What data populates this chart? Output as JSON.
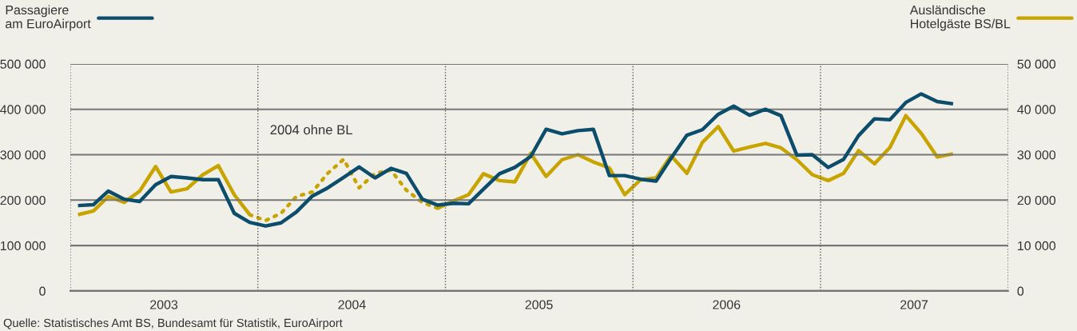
{
  "chart_data": {
    "type": "line",
    "x": [
      "2003-01-16",
      "2003-02-15",
      "2003-03-16",
      "2003-04-16",
      "2003-05-16",
      "2003-06-16",
      "2003-07-16",
      "2003-08-16",
      "2003-09-16",
      "2003-10-16",
      "2003-11-16",
      "2003-12-16",
      "2004-01-16",
      "2004-02-15",
      "2004-03-16",
      "2004-04-16",
      "2004-05-16",
      "2004-06-16",
      "2004-07-16",
      "2004-08-16",
      "2004-09-16",
      "2004-10-16",
      "2004-11-16",
      "2004-12-16",
      "2005-01-16",
      "2005-02-15",
      "2005-03-16",
      "2005-04-16",
      "2005-05-16",
      "2005-06-16",
      "2005-07-16",
      "2005-08-16",
      "2005-09-16",
      "2005-10-16",
      "2005-11-16",
      "2005-12-16",
      "2006-01-16",
      "2006-02-15",
      "2006-03-16",
      "2006-04-16",
      "2006-05-16",
      "2006-06-16",
      "2006-07-16",
      "2006-08-16",
      "2006-09-16",
      "2006-10-16",
      "2006-11-16",
      "2006-12-16",
      "2007-01-16",
      "2007-02-15",
      "2007-03-16",
      "2007-04-16",
      "2007-05-16",
      "2007-06-16",
      "2007-07-16",
      "2007-08-16",
      "2007-09-16"
    ],
    "series": [
      {
        "name": "Passagiere am EuroAirport",
        "color": "#0b4d6b",
        "line_style": "solid",
        "values": [
          188000,
          190000,
          220000,
          202000,
          197000,
          234000,
          252000,
          249000,
          245000,
          245000,
          171000,
          151000,
          143000,
          150000,
          174000,
          209000,
          227000,
          250000,
          273000,
          249000,
          270000,
          259000,
          202000,
          189000,
          193000,
          192000,
          224000,
          258000,
          272000,
          296000,
          356000,
          346000,
          353000,
          356000,
          254000,
          254000,
          246000,
          242000,
          292000,
          343000,
          355000,
          389000,
          407000,
          387000,
          400000,
          386000,
          299000,
          300000,
          272000,
          290000,
          342000,
          379000,
          377000,
          415000,
          434000,
          417000,
          412000
        ]
      },
      {
        "name": "Ausländische Hotelgäste BS/BL",
        "color": "#c8a400",
        "axis": "y2",
        "line_style": "solid",
        "values": [
          16800,
          17600,
          20800,
          19500,
          22000,
          27400,
          21800,
          22500,
          25600,
          27600,
          21200,
          16800,
          null,
          null,
          null,
          null,
          null,
          null,
          null,
          null,
          null,
          null,
          null,
          18200,
          19800,
          21200,
          25800,
          24300,
          24000,
          30300,
          25200,
          28900,
          30000,
          28400,
          27100,
          21200,
          24500,
          24900,
          29800,
          25900,
          32700,
          36200,
          30800,
          31700,
          32500,
          31500,
          28900,
          25600,
          24300,
          25900,
          30900,
          28000,
          31600,
          38600,
          34700,
          29500,
          30200
        ]
      },
      {
        "color": "#c8a400",
        "axis": "y2",
        "line_style": "dotted",
        "values": [
          null,
          null,
          null,
          null,
          null,
          null,
          null,
          null,
          null,
          null,
          null,
          16800,
          15500,
          17100,
          20800,
          21800,
          25900,
          29000,
          22700,
          25900,
          26600,
          22200,
          19500,
          18200,
          null,
          null,
          null,
          null,
          null,
          null,
          null,
          null,
          null,
          null,
          null,
          null,
          null,
          null,
          null,
          null,
          null,
          null,
          null,
          null,
          null,
          null,
          null,
          null,
          null,
          null,
          null,
          null,
          null,
          null,
          null,
          null,
          null
        ]
      }
    ],
    "xlim": [
      "2003-01-01",
      "2008-01-01"
    ],
    "xticks": [
      {
        "value": "2003-07-02",
        "label": "2003"
      },
      {
        "value": "2004-07-02",
        "label": "2004"
      },
      {
        "value": "2005-07-02",
        "label": "2005"
      },
      {
        "value": "2006-07-02",
        "label": "2006"
      },
      {
        "value": "2007-07-02",
        "label": "2007"
      }
    ],
    "ylim": [
      0,
      500000
    ],
    "yticks": [
      0,
      {
        "value": 100000,
        "label": "100 000"
      },
      {
        "value": 200000,
        "label": "200 000"
      },
      {
        "value": 300000,
        "label": "300 000"
      },
      {
        "value": 400000,
        "label": "400 000"
      },
      {
        "value": 500000,
        "label": "500 000"
      }
    ],
    "y2lim": [
      0,
      50000
    ],
    "y2ticks": [
      0,
      {
        "value": 10000,
        "label": "10 000"
      },
      {
        "value": 20000,
        "label": "20 000"
      },
      {
        "value": 30000,
        "label": "30 000"
      },
      {
        "value": 40000,
        "label": "40 000"
      },
      {
        "value": 50000,
        "label": "50 000"
      }
    ],
    "grid": "y",
    "legend": "top",
    "ref_lines": [
      {
        "axis": "x",
        "value": "2003-01-01",
        "line_style": "dotted",
        "color": "#555555"
      },
      {
        "axis": "x",
        "value": "2004-01-01",
        "line_style": "dotted",
        "color": "#555555"
      },
      {
        "axis": "x",
        "value": "2005-01-01",
        "line_style": "dotted",
        "color": "#555555"
      },
      {
        "axis": "x",
        "value": "2006-01-01",
        "line_style": "dotted",
        "color": "#555555"
      },
      {
        "axis": "x",
        "value": "2007-01-01",
        "line_style": "dotted",
        "color": "#555555"
      },
      {
        "axis": "x",
        "value": "2008-01-01",
        "line_style": "dotted",
        "color": "#555555"
      }
    ],
    "annotations": [
      "2004 ohne BL",
      "Quelle: Statistisches Amt BS, Bundesamt für Statistik, EuroAirport"
    ]
  }
}
